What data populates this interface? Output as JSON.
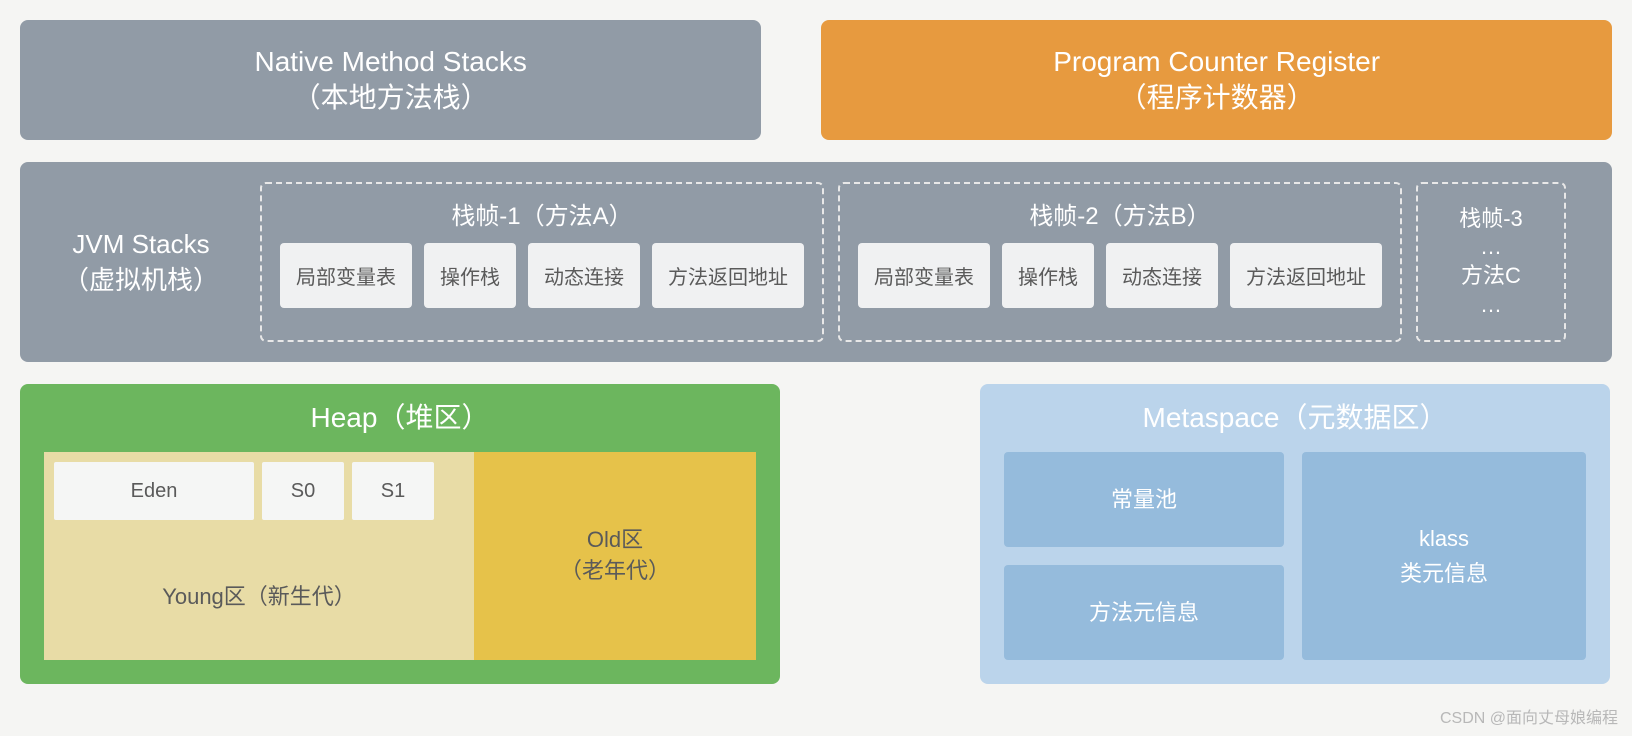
{
  "colors": {
    "gray": "#919ba6",
    "orange": "#e79a3f",
    "green": "#6cb65e",
    "khaki": "#e8dca6",
    "yellow": "#e6c24a",
    "blue_light": "#bbd4eb",
    "blue_mid": "#95bbdc",
    "cell_bg": "#f0f1f2",
    "text_dark": "#5a5a5a",
    "white": "#ffffff"
  },
  "fontsize": {
    "title": 28,
    "frame_title": 24,
    "cell": 20,
    "sub": 22
  },
  "nativeStacks": {
    "en": "Native Method Stacks",
    "cn": "（本地方法栈）"
  },
  "pcRegister": {
    "en": "Program Counter Register",
    "cn": "（程序计数器）"
  },
  "jvmStacks": {
    "en": "JVM Stacks",
    "cn": "（虚拟机栈）",
    "frames": [
      {
        "title": "栈帧-1（方法A）",
        "cells": [
          "局部变量表",
          "操作栈",
          "动态连接",
          "方法返回地址"
        ]
      },
      {
        "title": "栈帧-2（方法B）",
        "cells": [
          "局部变量表",
          "操作栈",
          "动态连接",
          "方法返回地址"
        ]
      }
    ],
    "frame3": {
      "title": "栈帧-3",
      "dots1": "…",
      "method": "方法C",
      "dots2": "…"
    }
  },
  "heap": {
    "title": "Heap（堆区）",
    "young": {
      "eden": "Eden",
      "s0": "S0",
      "s1": "S1",
      "label": "Young区（新生代）"
    },
    "old": {
      "line1": "Old区",
      "line2": "（老年代）"
    }
  },
  "metaspace": {
    "title": "Metaspace（元数据区）",
    "constPool": "常量池",
    "methodMeta": "方法元信息",
    "klass": {
      "line1": "klass",
      "line2": "类元信息"
    }
  },
  "watermark": "CSDN @面向丈母娘编程"
}
